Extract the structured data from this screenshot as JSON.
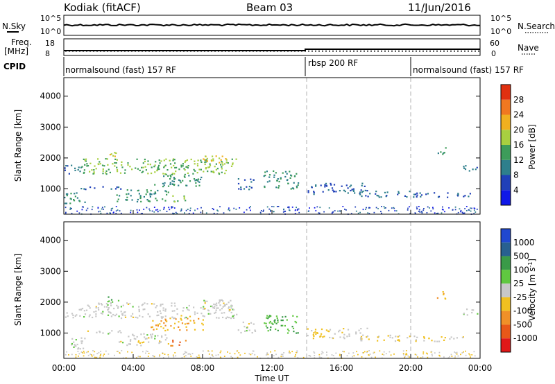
{
  "header": {
    "title": "Kodiak (fitACF)",
    "beam": "Beam 03",
    "date": "11/Jun/2016"
  },
  "sky_panel": {
    "left_label": "N.Sky",
    "right_label": "N.Search",
    "left_ticks": [
      "10^5",
      "10^0"
    ],
    "right_ticks": [
      "10^5",
      "10^0"
    ]
  },
  "freq_panel": {
    "left_label_1": "Freq.",
    "left_label_2": "[MHz]",
    "right_label": "Nave",
    "left_ticks": [
      "18",
      "8"
    ],
    "right_ticks": [
      "60",
      "0"
    ]
  },
  "cpid": {
    "label": "CPID",
    "segments": [
      {
        "label": "normalsound (fast) 157 RF",
        "start_hour": 0,
        "end_hour": 14
      },
      {
        "label": "rbsp 200 RF",
        "start_hour": 14,
        "end_hour": 20
      },
      {
        "label": "normalsound (fast) 157 RF",
        "start_hour": 20,
        "end_hour": 24
      }
    ]
  },
  "range_axis": {
    "label": "Slant Range [km]",
    "ticks": [
      "1000",
      "2000",
      "3000",
      "4000"
    ],
    "tick_values": [
      1000,
      2000,
      3000,
      4000
    ],
    "ylim": [
      180,
      4600
    ]
  },
  "time_axis": {
    "label": "Time UT",
    "ticks": [
      "00:00",
      "04:00",
      "08:00",
      "12:00",
      "16:00",
      "20:00",
      "00:00"
    ],
    "tick_hours": [
      0,
      4,
      8,
      12,
      16,
      20,
      24
    ],
    "xlim": [
      0,
      24
    ]
  },
  "power_scale": {
    "label": "Power [dB]",
    "ticks": [
      "4",
      "8",
      "12",
      "16",
      "20",
      "24",
      "28"
    ],
    "colors": [
      "#1018e8",
      "#2040b8",
      "#2e7f8c",
      "#3d9c5a",
      "#a8d040",
      "#f0b020",
      "#f07820",
      "#e03010"
    ]
  },
  "velocity_scale": {
    "label": "Velocity [m s",
    "label_sup": "-1",
    "label_end": "]",
    "ticks": [
      "1000",
      "500",
      "100",
      "25",
      "-25",
      "-100",
      "-500",
      "-1000"
    ],
    "colors": [
      "#2048d0",
      "#286090",
      "#3a9a48",
      "#60c840",
      "#c8c8c8",
      "#f0c020",
      "#f09028",
      "#e85818",
      "#e01818"
    ]
  },
  "chart_data": {
    "type": "heatmap",
    "x_unit": "hour UT",
    "y_unit": "km",
    "xlim": [
      0,
      24
    ],
    "ylim": [
      180,
      4600
    ],
    "echo_regions": [
      {
        "t": [
          0.0,
          1.2
        ],
        "r": [
          500,
          900
        ],
        "power": 12,
        "velocity": 0
      },
      {
        "t": [
          0.0,
          1.0
        ],
        "r": [
          1500,
          1800
        ],
        "power": 8,
        "velocity": 0
      },
      {
        "t": [
          0.8,
          3.5
        ],
        "r": [
          1000,
          1100
        ],
        "power": 8,
        "velocity": 0
      },
      {
        "t": [
          1.0,
          10.0
        ],
        "r": [
          1500,
          2000
        ],
        "power": 16,
        "velocity": 0
      },
      {
        "t": [
          2.5,
          3.2
        ],
        "r": [
          2000,
          2200
        ],
        "power": 20,
        "velocity": 100
      },
      {
        "t": [
          3.0,
          6.0
        ],
        "r": [
          600,
          1000
        ],
        "power": 12,
        "velocity": 0
      },
      {
        "t": [
          5.0,
          8.0
        ],
        "r": [
          1100,
          1500
        ],
        "power": 12,
        "velocity": -100
      },
      {
        "t": [
          6.0,
          7.0
        ],
        "r": [
          600,
          800
        ],
        "power": 16,
        "velocity": -500
      },
      {
        "t": [
          8.0,
          9.8
        ],
        "r": [
          1800,
          2100
        ],
        "power": 20,
        "velocity": 0
      },
      {
        "t": [
          10.0,
          11.0
        ],
        "r": [
          1000,
          1400
        ],
        "power": 8,
        "velocity": 0
      },
      {
        "t": [
          11.5,
          13.5
        ],
        "r": [
          1000,
          1600
        ],
        "power": 12,
        "velocity": 100
      },
      {
        "t": [
          14.0,
          17.5
        ],
        "r": [
          850,
          1200
        ],
        "power": 8,
        "velocity": -25
      },
      {
        "t": [
          17.0,
          20.5
        ],
        "r": [
          750,
          950
        ],
        "power": 8,
        "velocity": -25
      },
      {
        "t": [
          20.5,
          23.5
        ],
        "r": [
          750,
          900
        ],
        "power": 8,
        "velocity": -25
      },
      {
        "t": [
          21.5,
          22.0
        ],
        "r": [
          2100,
          2400
        ],
        "power": 12,
        "velocity": -100
      },
      {
        "t": [
          23.0,
          24.0
        ],
        "r": [
          1600,
          1800
        ],
        "power": 8,
        "velocity": 0
      }
    ],
    "ground_scatter_band": {
      "r": [
        200,
        450
      ],
      "t": [
        0,
        24
      ]
    },
    "vertical_markers_hours": [
      14,
      20
    ]
  }
}
